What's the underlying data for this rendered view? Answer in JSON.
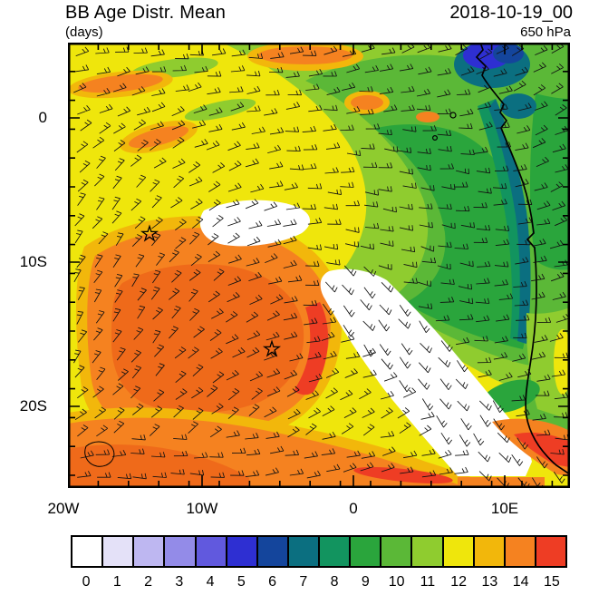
{
  "header": {
    "title": "BB Age Distr. Mean",
    "units_label": "(days)",
    "datetime": "2018-10-19_00",
    "level": "650 hPa"
  },
  "axes": {
    "y_tick_labels": [
      "0",
      "10S",
      "20S"
    ],
    "x_tick_labels": [
      "20W",
      "10W",
      "0",
      "10E"
    ]
  },
  "chart_data": {
    "type": "heatmap",
    "title": "BB Age Distr. Mean",
    "units": "days",
    "level": "650 hPa",
    "valid_time": "2018-10-19_00",
    "x_ticks": [
      "20W",
      "10W",
      "0",
      "10E"
    ],
    "y_ticks": [
      "0",
      "10S",
      "20S"
    ],
    "overlay": "wind barbs",
    "colorbar": {
      "values": [
        "0",
        "1",
        "2",
        "3",
        "4",
        "5",
        "6",
        "7",
        "8",
        "9",
        "10",
        "11",
        "12",
        "13",
        "14",
        "15"
      ],
      "colors": [
        "#FFFFFF",
        "#E4E1F8",
        "#BEB7F1",
        "#938BE8",
        "#6159DE",
        "#2E2FD2",
        "#14459C",
        "#0B6F80",
        "#12945F",
        "#2AA53C",
        "#5BB837",
        "#8FCC2F",
        "#EFE60C",
        "#F2B70B",
        "#F58220",
        "#EE3D24"
      ]
    },
    "markers": [
      {
        "symbol": "star",
        "approx_lon": "13.5W",
        "approx_lat": "8S"
      },
      {
        "symbol": "star",
        "approx_lon": "5.5W",
        "approx_lat": "16S"
      }
    ],
    "field_summary": [
      {
        "region": "background over most of the South Atlantic domain",
        "value_days": "11-12"
      },
      {
        "region": "aged plume core west-central (~12-18S, 18-8W)",
        "value_days": "13-14"
      },
      {
        "region": "southern band south of ~21S",
        "value_days": "13-15"
      },
      {
        "region": "equatorial / upper-right sector toward the African coast",
        "value_days": "7-10"
      },
      {
        "region": "near-coast strip Gabon-Angola",
        "value_days": "5-8"
      },
      {
        "region": "small patch near the coast at top right",
        "value_days": "3-6"
      },
      {
        "region": "diagonal band from ~8S,5W toward ~20S,8E and blotch near 9S,8W",
        "value_days": "0-1"
      }
    ]
  }
}
